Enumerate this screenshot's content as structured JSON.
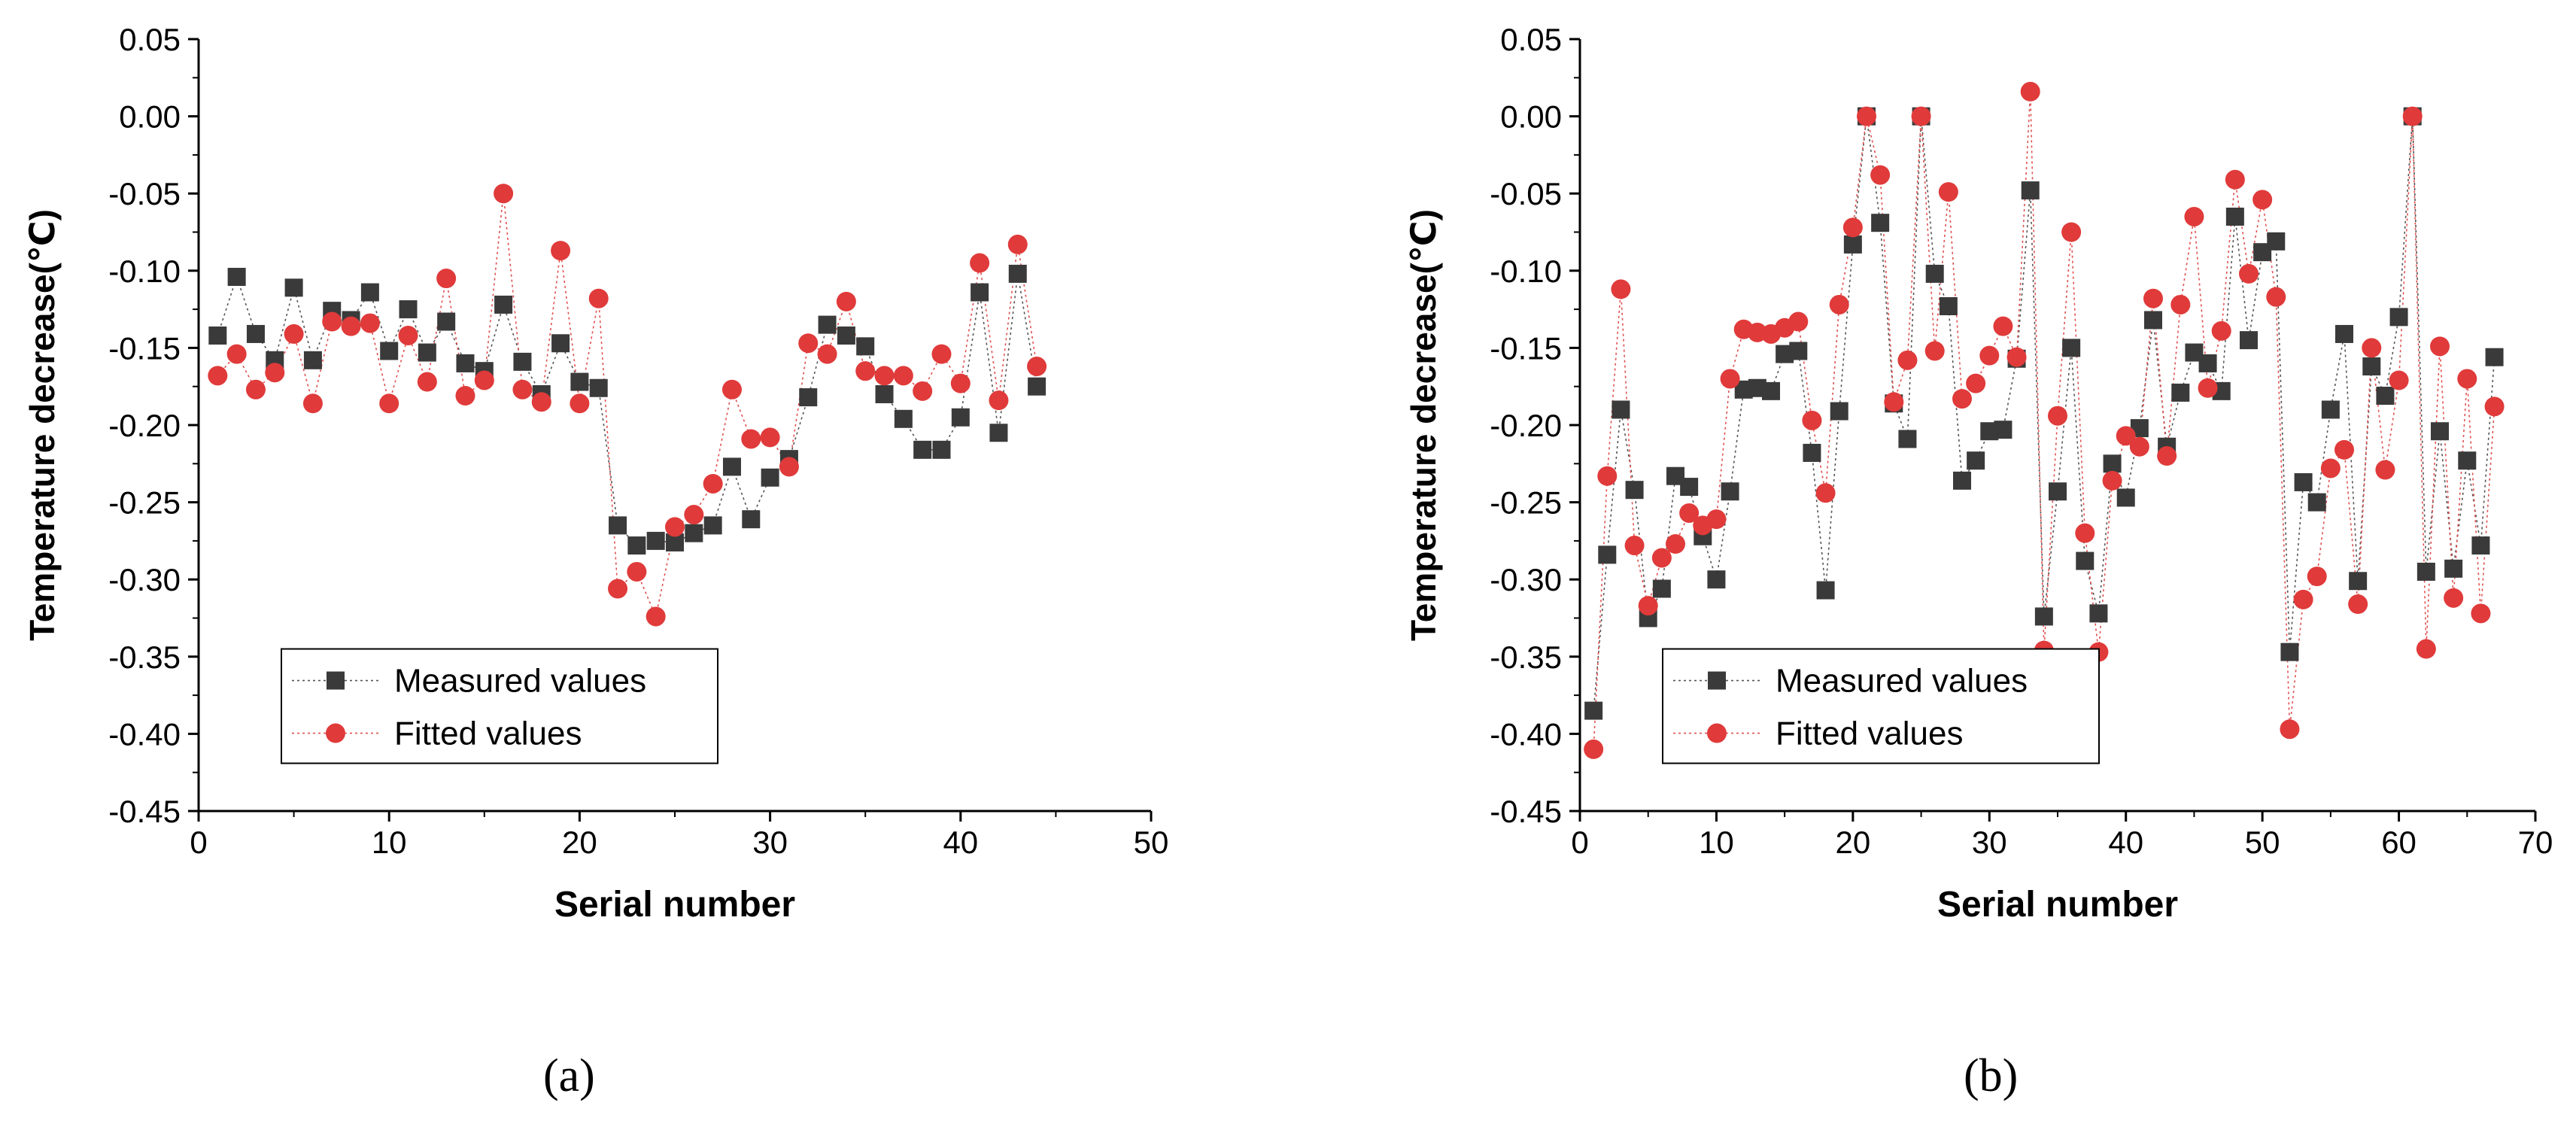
{
  "figure": {
    "panels": [
      "(a)",
      "(b)"
    ]
  },
  "chart_data": [
    {
      "type": "scatter",
      "panel_label": "a",
      "xlabel": "Serial number",
      "ylabel": "Temperature decrease(℃)",
      "xlim": [
        0,
        50
      ],
      "ylim": [
        -0.45,
        0.05
      ],
      "xticks": [
        0,
        10,
        20,
        30,
        40,
        50
      ],
      "yticks": [
        0.05,
        0.0,
        -0.05,
        -0.1,
        -0.15,
        -0.2,
        -0.25,
        -0.3,
        -0.35,
        -0.4,
        -0.45
      ],
      "ytick_labels": [
        "0.05",
        "0.00",
        "-0.05",
        "-0.10",
        "-0.15",
        "-0.20",
        "-0.25",
        "-0.30",
        "-0.35",
        "-0.40",
        "-0.45"
      ],
      "legend": {
        "position": "bottom-left",
        "entries": [
          "Measured values",
          "Fitted values"
        ]
      },
      "series": [
        {
          "name": "Measured values",
          "marker": "square",
          "color": "#3a3a3a",
          "x": [
            1,
            2,
            3,
            4,
            5,
            6,
            7,
            8,
            9,
            10,
            11,
            12,
            13,
            14,
            15,
            16,
            17,
            18,
            19,
            20,
            21,
            22,
            23,
            24,
            25,
            26,
            27,
            28,
            29,
            30,
            31,
            32,
            33,
            34,
            35,
            36,
            37,
            38,
            39,
            40,
            41,
            42,
            43,
            44
          ],
          "values": [
            -0.142,
            -0.104,
            -0.141,
            -0.158,
            -0.111,
            -0.158,
            -0.126,
            -0.132,
            -0.114,
            -0.152,
            -0.125,
            -0.153,
            -0.133,
            -0.16,
            -0.165,
            -0.122,
            -0.159,
            -0.18,
            -0.147,
            -0.172,
            -0.176,
            -0.265,
            -0.278,
            -0.275,
            -0.276,
            -0.27,
            -0.265,
            -0.227,
            -0.261,
            -0.234,
            -0.222,
            -0.182,
            -0.135,
            -0.142,
            -0.149,
            -0.18,
            -0.196,
            -0.216,
            -0.216,
            -0.195,
            -0.114,
            -0.205,
            -0.102,
            -0.175
          ]
        },
        {
          "name": "Fitted values",
          "marker": "circle",
          "color": "#e03a3a",
          "x": [
            1,
            2,
            3,
            4,
            5,
            6,
            7,
            8,
            9,
            10,
            11,
            12,
            13,
            14,
            15,
            16,
            17,
            18,
            19,
            20,
            21,
            22,
            23,
            24,
            25,
            26,
            27,
            28,
            29,
            30,
            31,
            32,
            33,
            34,
            35,
            36,
            37,
            38,
            39,
            40,
            41,
            42,
            43,
            44
          ],
          "values": [
            -0.168,
            -0.154,
            -0.177,
            -0.166,
            -0.141,
            -0.186,
            -0.133,
            -0.136,
            -0.134,
            -0.186,
            -0.142,
            -0.172,
            -0.105,
            -0.181,
            -0.171,
            -0.05,
            -0.177,
            -0.185,
            -0.087,
            -0.186,
            -0.118,
            -0.306,
            -0.295,
            -0.324,
            -0.266,
            -0.258,
            -0.238,
            -0.177,
            -0.209,
            -0.208,
            -0.227,
            -0.147,
            -0.154,
            -0.12,
            -0.165,
            -0.168,
            -0.168,
            -0.178,
            -0.154,
            -0.173,
            -0.095,
            -0.184,
            -0.083,
            -0.162
          ]
        }
      ]
    },
    {
      "type": "scatter",
      "panel_label": "b",
      "xlabel": "Serial number",
      "ylabel": "Temperature decrease(℃)",
      "xlim": [
        0,
        70
      ],
      "ylim": [
        -0.45,
        0.05
      ],
      "xticks": [
        0,
        10,
        20,
        30,
        40,
        50,
        60,
        70
      ],
      "yticks": [
        0.05,
        0.0,
        -0.05,
        -0.1,
        -0.15,
        -0.2,
        -0.25,
        -0.3,
        -0.35,
        -0.4,
        -0.45
      ],
      "ytick_labels": [
        "0.05",
        "0.00",
        "-0.05",
        "-0.10",
        "-0.15",
        "-0.20",
        "-0.25",
        "-0.30",
        "-0.35",
        "-0.40",
        "-0.45"
      ],
      "legend": {
        "position": "bottom-left",
        "entries": [
          "Measured values",
          "Fitted values"
        ]
      },
      "series": [
        {
          "name": "Measured values",
          "marker": "square",
          "color": "#3a3a3a",
          "x": [
            1,
            2,
            3,
            4,
            5,
            6,
            7,
            8,
            9,
            10,
            11,
            12,
            13,
            14,
            15,
            16,
            17,
            18,
            19,
            20,
            21,
            22,
            23,
            24,
            25,
            26,
            27,
            28,
            29,
            30,
            31,
            32,
            33,
            34,
            35,
            36,
            37,
            38,
            39,
            40,
            41,
            42,
            43,
            44,
            45,
            46,
            47,
            48,
            49,
            50,
            51,
            52,
            53,
            54,
            55,
            56,
            57,
            58,
            59,
            60,
            61,
            62,
            63,
            64,
            65,
            66,
            67
          ],
          "values": [
            -0.385,
            -0.284,
            -0.19,
            -0.242,
            -0.325,
            -0.306,
            -0.233,
            -0.24,
            -0.272,
            -0.3,
            -0.243,
            -0.177,
            -0.176,
            -0.178,
            -0.154,
            -0.152,
            -0.218,
            -0.307,
            -0.191,
            -0.083,
            0.0,
            -0.069,
            -0.186,
            -0.209,
            0.0,
            -0.102,
            -0.123,
            -0.236,
            -0.223,
            -0.204,
            -0.203,
            -0.157,
            -0.048,
            -0.324,
            -0.243,
            -0.15,
            -0.288,
            -0.322,
            -0.225,
            -0.247,
            -0.202,
            -0.132,
            -0.214,
            -0.179,
            -0.153,
            -0.16,
            -0.178,
            -0.065,
            -0.145,
            -0.088,
            -0.081,
            -0.347,
            -0.237,
            -0.25,
            -0.19,
            -0.141,
            -0.301,
            -0.162,
            -0.181,
            -0.13,
            0.0,
            -0.295,
            -0.204,
            -0.293,
            -0.223,
            -0.278,
            -0.156
          ]
        },
        {
          "name": "Fitted values",
          "marker": "circle",
          "color": "#e03a3a",
          "x": [
            1,
            2,
            3,
            4,
            5,
            6,
            7,
            8,
            9,
            10,
            11,
            12,
            13,
            14,
            15,
            16,
            17,
            18,
            19,
            20,
            21,
            22,
            23,
            24,
            25,
            26,
            27,
            28,
            29,
            30,
            31,
            32,
            33,
            34,
            35,
            36,
            37,
            38,
            39,
            40,
            41,
            42,
            43,
            44,
            45,
            46,
            47,
            48,
            49,
            50,
            51,
            52,
            53,
            54,
            55,
            56,
            57,
            58,
            59,
            60,
            61,
            62,
            63,
            64,
            65,
            66,
            67
          ],
          "values": [
            -0.41,
            -0.233,
            -0.112,
            -0.278,
            -0.317,
            -0.286,
            -0.277,
            -0.257,
            -0.265,
            -0.261,
            -0.17,
            -0.138,
            -0.14,
            -0.141,
            -0.137,
            -0.133,
            -0.197,
            -0.244,
            -0.122,
            -0.072,
            0.0,
            -0.038,
            -0.185,
            -0.158,
            0.0,
            -0.152,
            -0.049,
            -0.183,
            -0.173,
            -0.155,
            -0.136,
            -0.156,
            0.016,
            -0.346,
            -0.194,
            -0.075,
            -0.27,
            -0.347,
            -0.236,
            -0.207,
            -0.214,
            -0.118,
            -0.22,
            -0.122,
            -0.065,
            -0.176,
            -0.139,
            -0.041,
            -0.102,
            -0.054,
            -0.117,
            -0.397,
            -0.313,
            -0.298,
            -0.228,
            -0.216,
            -0.316,
            -0.15,
            -0.229,
            -0.171,
            0.0,
            -0.345,
            -0.149,
            -0.312,
            -0.17,
            -0.322,
            -0.188
          ]
        }
      ]
    }
  ]
}
